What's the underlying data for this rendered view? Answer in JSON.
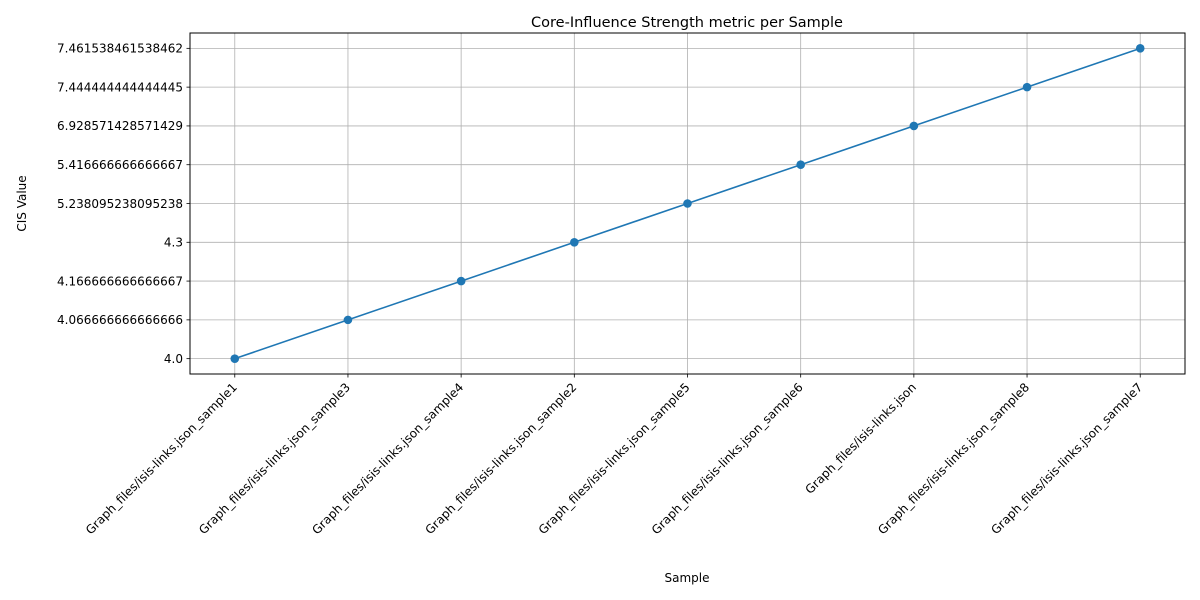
{
  "chart_data": {
    "type": "line",
    "title": "Core-Influence Strength metric per Sample",
    "xlabel": "Sample",
    "ylabel": "CIS Value",
    "categories": [
      "Graph_files/isis-links.json_sample1",
      "Graph_files/isis-links.json_sample3",
      "Graph_files/isis-links.json_sample4",
      "Graph_files/isis-links.json_sample2",
      "Graph_files/isis-links.json_sample5",
      "Graph_files/isis-links.json_sample6",
      "Graph_files/isis-links.json",
      "Graph_files/isis-links.json_sample8",
      "Graph_files/isis-links.json_sample7"
    ],
    "y_tick_labels": [
      "4.0",
      "4.066666666666666",
      "4.166666666666667",
      "4.3",
      "5.238095238095238",
      "5.416666666666667",
      "6.928571428571429",
      "7.444444444444445",
      "7.461538461538462"
    ],
    "series": [
      {
        "values": [
          4.0,
          4.066666666666666,
          4.166666666666667,
          4.3,
          5.238095238095238,
          5.416666666666667,
          6.928571428571429,
          7.444444444444445,
          7.461538461538462
        ],
        "color": "#1f77b4",
        "marker": "circle"
      }
    ],
    "y_axis_categorical": true,
    "grid": true,
    "legend": "none"
  }
}
